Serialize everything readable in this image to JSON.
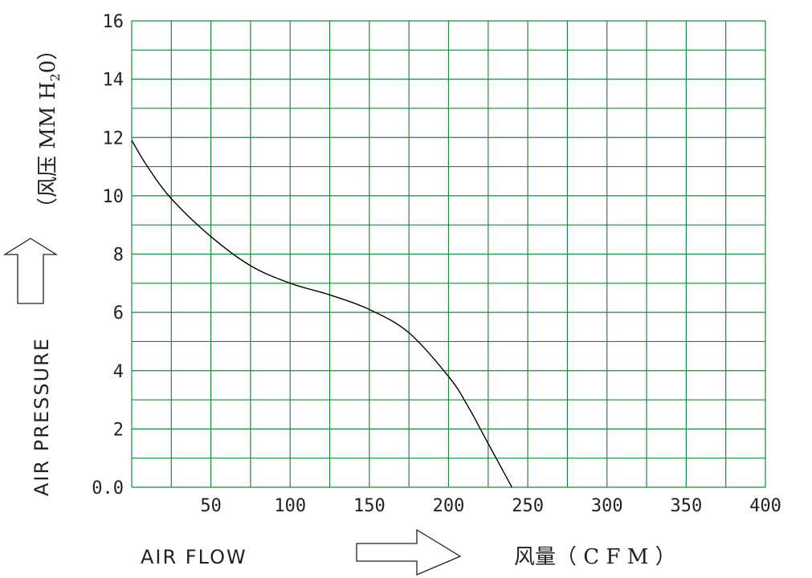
{
  "chart_data": {
    "type": "line",
    "xlim": [
      0,
      400
    ],
    "ylim": [
      0,
      16
    ],
    "x_ticks": [
      "50",
      "100",
      "150",
      "200",
      "250",
      "300",
      "350",
      "400"
    ],
    "y_ticks": [
      "0.0",
      "2",
      "4",
      "6",
      "8",
      "10",
      "12",
      "14",
      "16"
    ],
    "grid": true,
    "series": [
      {
        "points": [
          [
            0,
            11.9
          ],
          [
            10,
            11.0
          ],
          [
            25,
            9.9
          ],
          [
            50,
            8.6
          ],
          [
            75,
            7.6
          ],
          [
            100,
            7.0
          ],
          [
            125,
            6.6
          ],
          [
            150,
            6.1
          ],
          [
            175,
            5.3
          ],
          [
            200,
            3.8
          ],
          [
            212,
            2.8
          ],
          [
            225,
            1.5
          ],
          [
            240,
            0
          ]
        ]
      }
    ],
    "colors": {
      "grid": "#1a8a3a",
      "line": "#000000",
      "text": "#222222"
    }
  },
  "labels": {
    "xlabel": "AIR FLOW",
    "xlabel_cn": "风量（ C F M ）",
    "ylabel": "AIR PRESSURE",
    "ylabel_cn": "（风压 MM H",
    "ylabel_sub": "2",
    "ylabel_end": "0）"
  }
}
